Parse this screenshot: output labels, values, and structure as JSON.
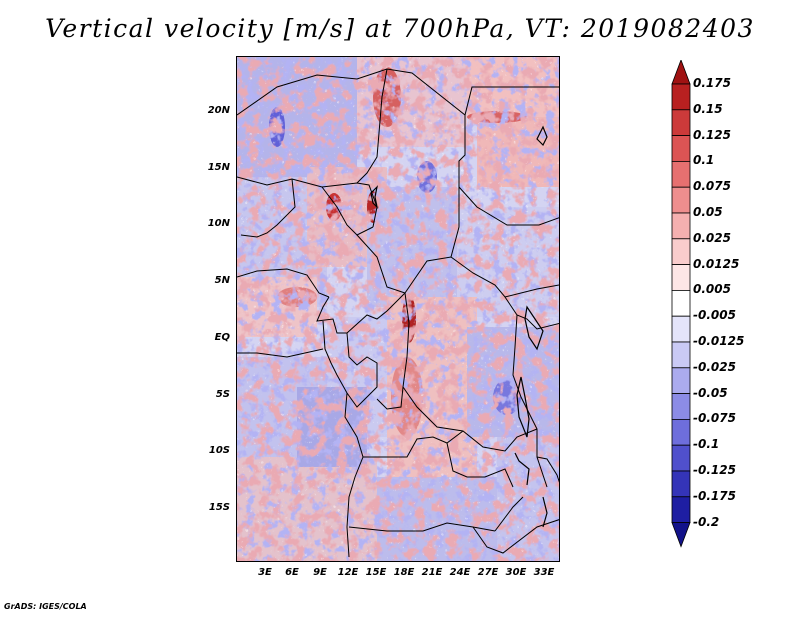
{
  "title": "Vertical velocity [m/s] at 700hPa, VT: 2019082403",
  "credit": "GrADS: IGES/COLA",
  "map": {
    "region": "Central Africa",
    "lat_ticks": [
      "20N",
      "15N",
      "10N",
      "5N",
      "EQ",
      "5S",
      "10S",
      "15S"
    ],
    "lon_ticks": [
      "3E",
      "6E",
      "9E",
      "12E",
      "15E",
      "18E",
      "21E",
      "24E",
      "27E",
      "30E",
      "33E"
    ]
  },
  "colorbar": {
    "labels": [
      "0.175",
      "0.15",
      "0.125",
      "0.1",
      "0.075",
      "0.05",
      "0.025",
      "0.0125",
      "0.005",
      "-0.005",
      "-0.0125",
      "-0.025",
      "-0.05",
      "-0.075",
      "-0.1",
      "-0.125",
      "-0.175",
      "-0.2"
    ],
    "colors": [
      "#a01212",
      "#b82020",
      "#cc3a3a",
      "#dc5454",
      "#e67070",
      "#ee8e8e",
      "#f5b0b0",
      "#f9cccc",
      "#fde6e6",
      "#ffffff",
      "#e4e4fa",
      "#cacaf5",
      "#ababee",
      "#8c8ce6",
      "#6e6edc",
      "#5050cc",
      "#3434b8",
      "#1e1ea2",
      "#12128a"
    ]
  }
}
